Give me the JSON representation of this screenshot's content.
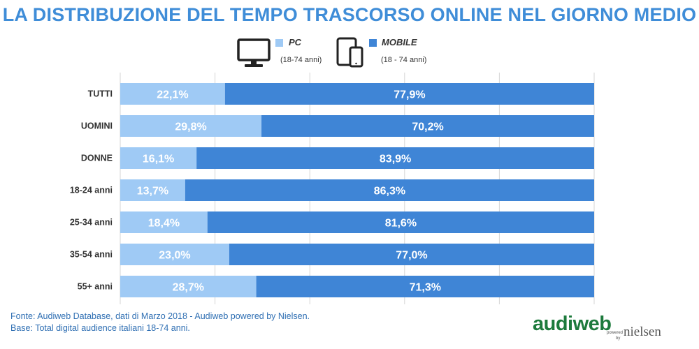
{
  "title": "LA DISTRIBUZIONE DEL TEMPO TRASCORSO ONLINE NEL GIORNO MEDIO",
  "legend": {
    "pc": {
      "label": "PC",
      "sub": "(18-74 anni)",
      "icon": "desktop-monitor-icon"
    },
    "mobile": {
      "label": "MOBILE",
      "sub": "(18 - 74 anni)",
      "icon": "tablet-phone-icon"
    }
  },
  "colors": {
    "title": "#3f8dd8",
    "pc": "#9fcaf5",
    "mobile": "#3f85d6",
    "label_text": "#ffffff",
    "grid": "#d6d6d6"
  },
  "chart_data": {
    "type": "bar",
    "orientation": "horizontal",
    "stacked": "100%",
    "categories": [
      "TUTTI",
      "UOMINI",
      "DONNE",
      "18-24 anni",
      "25-34 anni",
      "35-54 anni",
      "55+ anni"
    ],
    "series": [
      {
        "name": "PC",
        "values": [
          22.1,
          29.8,
          16.1,
          13.7,
          18.4,
          23.0,
          28.7
        ],
        "labels": [
          "22,1%",
          "29,8%",
          "16,1%",
          "13,7%",
          "18,4%",
          "23,0%",
          "28,7%"
        ]
      },
      {
        "name": "MOBILE",
        "values": [
          77.9,
          70.2,
          83.9,
          86.3,
          81.6,
          77.0,
          71.3
        ],
        "labels": [
          "77,9%",
          "70,2%",
          "83,9%",
          "86,3%",
          "81,6%",
          "77,0%",
          "71,3%"
        ]
      }
    ],
    "xlim": [
      0,
      100
    ],
    "grid": true,
    "legend_position": "top"
  },
  "footnotes": {
    "source": "Fonte: Audiweb Database, dati di Marzo 2018 - Audiweb powered by Nielsen.",
    "base": "Base: Total digital audience italiani 18-74 anni."
  },
  "logo": {
    "brand": "audiweb",
    "powered": "powered",
    "by": "by",
    "partner": "nielsen"
  }
}
